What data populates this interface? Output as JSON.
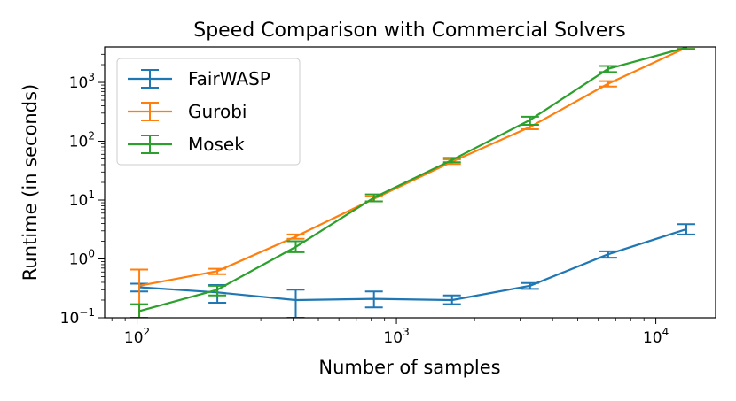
{
  "chart_data": {
    "type": "line",
    "title": "Speed Comparison with Commercial Solvers",
    "xlabel": "Number of samples",
    "ylabel": "Runtime (in seconds)",
    "xscale": "log",
    "yscale": "log",
    "xlim": [
      75,
      17000
    ],
    "ylim": [
      0.1,
      4000
    ],
    "x_ticks": [
      {
        "value": 100,
        "base": "10",
        "exp": "2"
      },
      {
        "value": 1000,
        "base": "10",
        "exp": "3"
      },
      {
        "value": 10000,
        "base": "10",
        "exp": "4"
      }
    ],
    "y_ticks": [
      {
        "value": 0.1,
        "base": "10",
        "exp": "−1"
      },
      {
        "value": 1,
        "base": "10",
        "exp": "0"
      },
      {
        "value": 10,
        "base": "10",
        "exp": "1"
      },
      {
        "value": 100,
        "base": "10",
        "exp": "2"
      },
      {
        "value": 1000,
        "base": "10",
        "exp": "3"
      }
    ],
    "legend_position": "top-left",
    "x": [
      102,
      204,
      409,
      819,
      1638,
      3276,
      6553,
      13107
    ],
    "series": [
      {
        "name": "FairWASP",
        "color": "#1f77b4",
        "values": [
          0.33,
          0.27,
          0.2,
          0.21,
          0.2,
          0.35,
          1.2,
          3.2
        ],
        "err_low": [
          0.28,
          0.18,
          0.1,
          0.15,
          0.17,
          0.31,
          1.05,
          2.6
        ],
        "err_high": [
          0.38,
          0.36,
          0.3,
          0.28,
          0.24,
          0.39,
          1.35,
          3.9
        ]
      },
      {
        "name": "Gurobi",
        "color": "#ff7f0e",
        "values": [
          0.35,
          0.62,
          2.4,
          10.5,
          45,
          175,
          950,
          3900
        ],
        "err_low": [
          0.1,
          0.55,
          2.2,
          9.5,
          41,
          160,
          850,
          3700
        ],
        "err_high": [
          0.66,
          0.68,
          2.6,
          11.5,
          49,
          190,
          1050,
          4100
        ]
      },
      {
        "name": "Mosek",
        "color": "#2ca02c",
        "values": [
          0.13,
          0.3,
          1.6,
          11,
          48,
          230,
          1700,
          3900
        ],
        "err_low": [
          0.1,
          0.24,
          1.3,
          9.5,
          44,
          190,
          1500,
          3700
        ],
        "err_high": [
          0.17,
          0.35,
          2.0,
          12.5,
          52,
          260,
          1900,
          4100
        ]
      }
    ]
  }
}
